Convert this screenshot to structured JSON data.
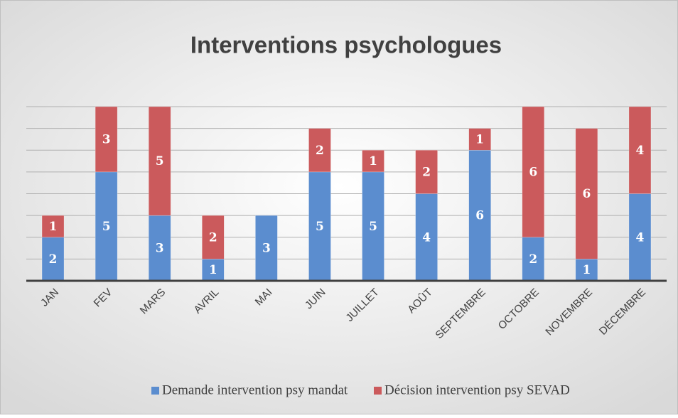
{
  "chart_data": {
    "type": "stacked_bar",
    "title": "Interventions psychologues",
    "categories": [
      "JAN",
      "FEV",
      "MARS",
      "AVRIL",
      "MAI",
      "JUIN",
      "JUILLET",
      "AOÛT",
      "SEPTEMBRE",
      "OCTOBRE",
      "NOVEMBRE",
      "DÉCEMBRE"
    ],
    "series": [
      {
        "name": "Demande intervention psy mandat",
        "color": "#5b8dcf",
        "values": [
          2,
          5,
          3,
          1,
          3,
          5,
          5,
          4,
          6,
          2,
          1,
          4
        ]
      },
      {
        "name": "Décision intervention psy SEVAD",
        "color": "#cb5a5c",
        "values": [
          1,
          3,
          5,
          2,
          null,
          2,
          1,
          2,
          1,
          6,
          6,
          4
        ]
      }
    ],
    "ylim": [
      0,
      8
    ],
    "yticks": [
      0,
      1,
      2,
      3,
      4,
      5,
      6,
      7,
      8
    ],
    "grid": true,
    "legend": "bottom"
  }
}
